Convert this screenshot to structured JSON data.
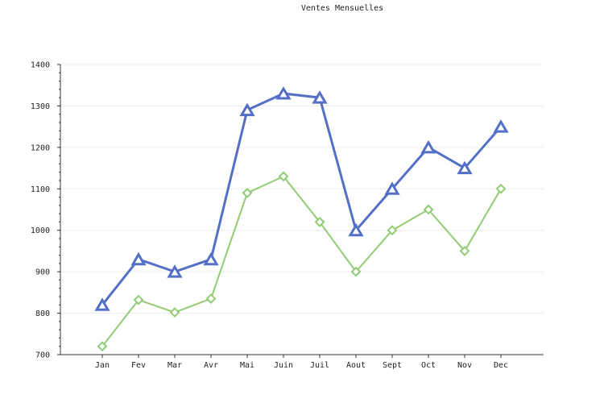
{
  "chart_data": {
    "type": "line",
    "title": "Ventes Mensuelles",
    "xlabel": "",
    "ylabel": "",
    "categories": [
      "Jan",
      "Fev",
      "Mar",
      "Avr",
      "Mai",
      "Juin",
      "Juil",
      "Aout",
      "Sept",
      "Oct",
      "Nov",
      "Dec"
    ],
    "ylim": [
      700,
      1400
    ],
    "yticks": [
      700,
      800,
      900,
      1000,
      1100,
      1200,
      1300,
      1400
    ],
    "grid": true,
    "legend": false,
    "series": [
      {
        "color": "#5470c6",
        "marker": "triangle",
        "values": [
          820,
          930,
          900,
          930,
          1290,
          1330,
          1320,
          1000,
          1100,
          1200,
          1150,
          1250
        ]
      },
      {
        "color": "#91cc75",
        "marker": "diamond",
        "values": [
          720,
          832,
          802,
          835,
          1090,
          1130,
          1020,
          900,
          1000,
          1050,
          950,
          1100
        ]
      }
    ]
  }
}
